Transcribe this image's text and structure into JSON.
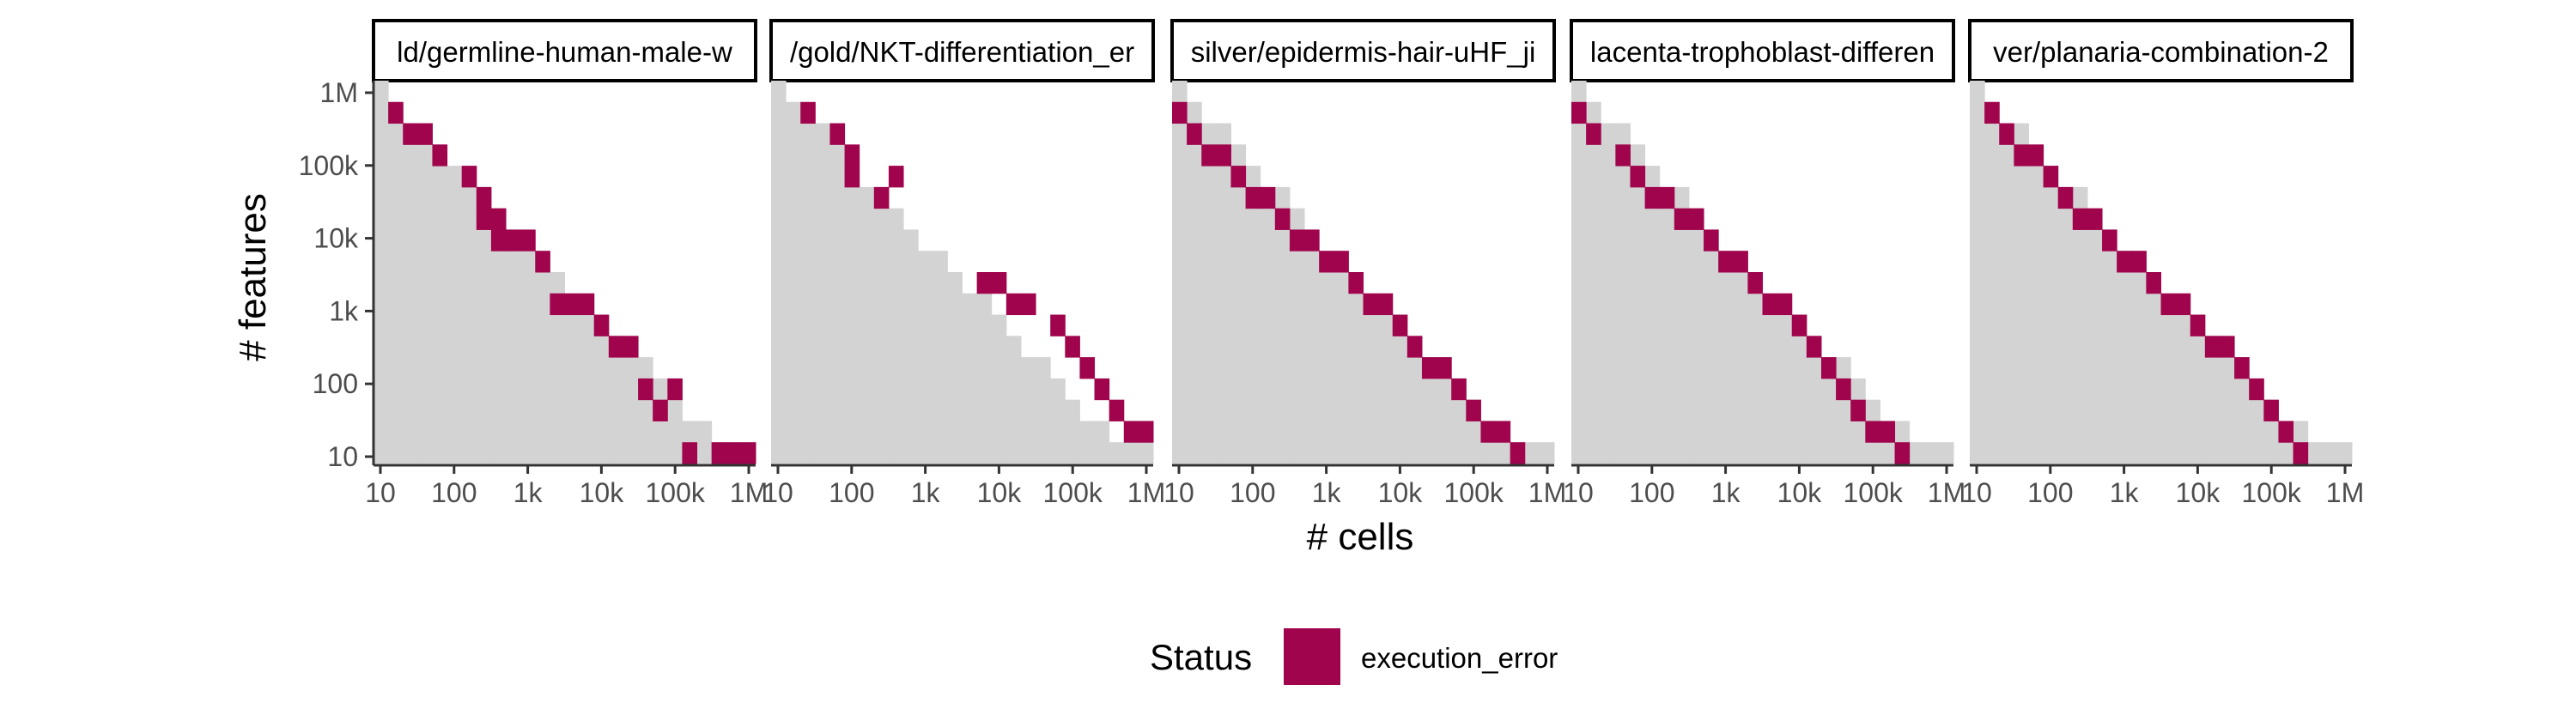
{
  "chart_data": {
    "type": "heatmap",
    "xlabel": "# cells",
    "ylabel": "# features",
    "x_scale": "log10",
    "y_scale": "log10",
    "xlim": [
      10,
      1000000
    ],
    "ylim": [
      10,
      1000000
    ],
    "x_ticks": [
      {
        "value": 10,
        "label": "10"
      },
      {
        "value": 100,
        "label": "100"
      },
      {
        "value": 1000,
        "label": "1k"
      },
      {
        "value": 10000,
        "label": "10k"
      },
      {
        "value": 100000,
        "label": "100k"
      },
      {
        "value": 1000000,
        "label": "1M"
      }
    ],
    "y_ticks": [
      {
        "value": 1000000,
        "label": "1M"
      },
      {
        "value": 100000,
        "label": "100k"
      },
      {
        "value": 10000,
        "label": "10k"
      },
      {
        "value": 1000,
        "label": "1k"
      },
      {
        "value": 100,
        "label": "100"
      },
      {
        "value": 10,
        "label": "10"
      }
    ],
    "grid": false,
    "legend": {
      "title": "Status",
      "position": "bottom",
      "entries": [
        {
          "label": "execution_error",
          "color": "#a0044d"
        }
      ]
    },
    "colors": {
      "tested_region": "#d3d3d3",
      "execution_error": "#a0044d"
    },
    "panels": [
      {
        "title": "ld/germline-human-male-w",
        "error_cells": [
          [
            1,
            1
          ],
          [
            2,
            2
          ],
          [
            3,
            2
          ],
          [
            4,
            3
          ],
          [
            6,
            4
          ],
          [
            7,
            5
          ],
          [
            7,
            6
          ],
          [
            8,
            6
          ],
          [
            8,
            7
          ],
          [
            9,
            7
          ],
          [
            10,
            7
          ],
          [
            11,
            8
          ],
          [
            12,
            10
          ],
          [
            13,
            10
          ],
          [
            14,
            10
          ],
          [
            15,
            11
          ],
          [
            16,
            12
          ],
          [
            17,
            12
          ],
          [
            18,
            14
          ],
          [
            20,
            14
          ],
          [
            19,
            15
          ],
          [
            24,
            17
          ],
          [
            25,
            17
          ],
          [
            23,
            17
          ],
          [
            21,
            17
          ]
        ]
      },
      {
        "title": "/gold/NKT-differentiation_er",
        "error_cells": [
          [
            2,
            1
          ],
          [
            4,
            2
          ],
          [
            5,
            3
          ],
          [
            5,
            4
          ],
          [
            7,
            5
          ],
          [
            8,
            4
          ],
          [
            14,
            9
          ],
          [
            15,
            9
          ],
          [
            16,
            10
          ],
          [
            17,
            10
          ],
          [
            19,
            11
          ],
          [
            20,
            12
          ],
          [
            21,
            13
          ],
          [
            22,
            14
          ],
          [
            23,
            15
          ],
          [
            24,
            16
          ],
          [
            25,
            16
          ]
        ]
      },
      {
        "title": "silver/epidermis-hair-uHF_ji",
        "error_cells": [
          [
            0,
            1
          ],
          [
            1,
            2
          ],
          [
            2,
            3
          ],
          [
            3,
            3
          ],
          [
            4,
            4
          ],
          [
            5,
            5
          ],
          [
            6,
            5
          ],
          [
            7,
            6
          ],
          [
            8,
            7
          ],
          [
            9,
            7
          ],
          [
            10,
            8
          ],
          [
            11,
            8
          ],
          [
            12,
            9
          ],
          [
            13,
            10
          ],
          [
            14,
            10
          ],
          [
            15,
            11
          ],
          [
            16,
            12
          ],
          [
            17,
            13
          ],
          [
            18,
            13
          ],
          [
            19,
            14
          ],
          [
            20,
            15
          ],
          [
            21,
            16
          ],
          [
            22,
            16
          ],
          [
            23,
            17
          ]
        ]
      },
      {
        "title": "lacenta-trophoblast-differen",
        "error_cells": [
          [
            0,
            1
          ],
          [
            1,
            2
          ],
          [
            3,
            3
          ],
          [
            4,
            4
          ],
          [
            5,
            5
          ],
          [
            6,
            5
          ],
          [
            7,
            6
          ],
          [
            8,
            6
          ],
          [
            9,
            7
          ],
          [
            10,
            8
          ],
          [
            11,
            8
          ],
          [
            12,
            9
          ],
          [
            13,
            10
          ],
          [
            14,
            10
          ],
          [
            15,
            11
          ],
          [
            16,
            12
          ],
          [
            17,
            13
          ],
          [
            18,
            14
          ],
          [
            19,
            15
          ],
          [
            20,
            16
          ],
          [
            21,
            16
          ],
          [
            22,
            17
          ]
        ]
      },
      {
        "title": "ver/planaria-combination-2",
        "error_cells": [
          [
            1,
            1
          ],
          [
            2,
            2
          ],
          [
            3,
            3
          ],
          [
            4,
            3
          ],
          [
            5,
            4
          ],
          [
            6,
            5
          ],
          [
            7,
            6
          ],
          [
            8,
            6
          ],
          [
            9,
            7
          ],
          [
            10,
            8
          ],
          [
            11,
            8
          ],
          [
            12,
            9
          ],
          [
            13,
            10
          ],
          [
            14,
            10
          ],
          [
            15,
            11
          ],
          [
            16,
            12
          ],
          [
            17,
            12
          ],
          [
            18,
            13
          ],
          [
            19,
            14
          ],
          [
            20,
            15
          ],
          [
            21,
            16
          ],
          [
            22,
            17
          ]
        ]
      }
    ]
  }
}
